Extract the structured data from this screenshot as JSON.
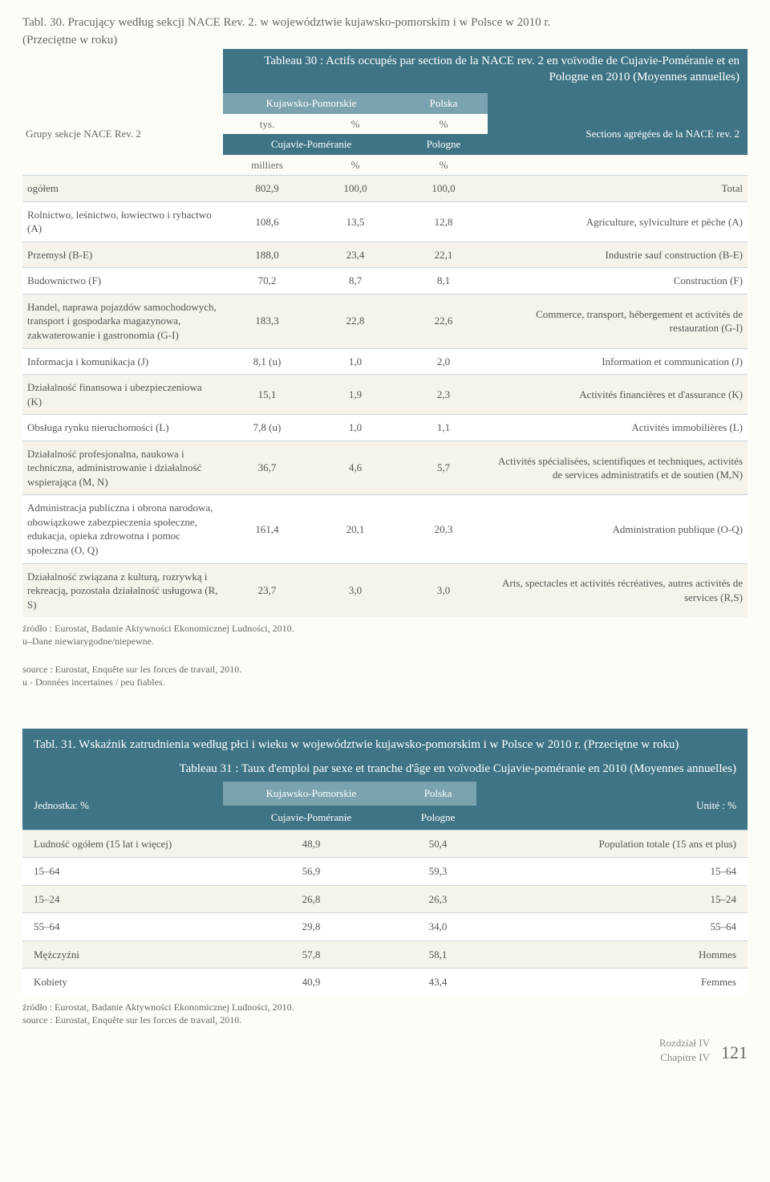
{
  "table30": {
    "title_pl_line1": "Tabl. 30. Pracujący według sekcji NACE Rev. 2. w województwie kujawsko-pomorskim i w Polsce w 2010 r.",
    "title_pl_line2": "(Przeciętne w roku)",
    "title_fr": "Tableau 30 : Actifs occupés par section de la NACE rev. 2 en voïvodie de Cujavie-Poméranie et en Pologne en 2010 (Moyennes annuelles)",
    "rowlabel_pl": "Grupy sekcje NACE Rev. 2",
    "rowlabel_fr": "Sections agrégées de la NACE rev. 2",
    "h_kp": "Kujawsko-Pomorskie",
    "h_pl": "Polska",
    "h_tys": "tys.",
    "h_pct": "%",
    "h_cp": "Cujavie-Poméranie",
    "h_pologne": "Pologne",
    "h_milliers": "milliers",
    "rows": [
      {
        "pl": "ogółem",
        "v1": "802,9",
        "v2": "100,0",
        "v3": "100,0",
        "fr": "Total"
      },
      {
        "pl": "Rolnictwo, leśnictwo, łowiectwo i rybactwo (A)",
        "v1": "108,6",
        "v2": "13,5",
        "v3": "12,8",
        "fr": "Agriculture, sylviculture et pêche (A)"
      },
      {
        "pl": "Przemysł (B-E)",
        "v1": "188,0",
        "v2": "23,4",
        "v3": "22,1",
        "fr": "Industrie sauf construction (B-E)"
      },
      {
        "pl": "Budownictwo (F)",
        "v1": "70,2",
        "v2": "8,7",
        "v3": "8,1",
        "fr": "Construction (F)"
      },
      {
        "pl": "Handel, naprawa pojazdów samochodowych, transport i gospodarka magazynowa, zakwaterowanie i gastronomia (G-I)",
        "v1": "183,3",
        "v2": "22,8",
        "v3": "22,6",
        "fr": "Commerce, transport, hébergement et activités de restauration (G-I)"
      },
      {
        "pl": "Informacja i komunikacja (J)",
        "v1": "8,1 (u)",
        "v2": "1,0",
        "v3": "2,0",
        "fr": "Information et communication (J)"
      },
      {
        "pl": "Działalność finansowa i ubezpieczeniowa (K)",
        "v1": "15,1",
        "v2": "1,9",
        "v3": "2,3",
        "fr": "Activités financières et d'assurance (K)"
      },
      {
        "pl": "Obsługa rynku nieruchomości (L)",
        "v1": "7,8 (u)",
        "v2": "1,0",
        "v3": "1,1",
        "fr": "Activités immobilières (L)"
      },
      {
        "pl": "Działalność profesjonalna, naukowa i techniczna, administrowanie i działalność wspierająca (M, N)",
        "v1": "36,7",
        "v2": "4,6",
        "v3": "5,7",
        "fr": "Activités spécialisées, scientifiques et techniques, activités de services administratifs et de soutien (M,N)"
      },
      {
        "pl": "Administracja publiczna i obrona narodowa, obowiązkowe zabezpieczenia społeczne, edukacja, opieka zdrowotna i pomoc społeczna (O, Q)",
        "v1": "161,4",
        "v2": "20,1",
        "v3": "20,3",
        "fr": "Administration publique (O-Q)"
      },
      {
        "pl": "Działalność związana z kulturą, rozrywką i rekreacją, pozostała działalność usługowa (R, S)",
        "v1": "23,7",
        "v2": "3,0",
        "v3": "3,0",
        "fr": "Arts, spectacles et activités récréatives, autres activités de services (R,S)"
      }
    ],
    "footnote_pl1": "źródło : Eurostat, Badanie Aktywności Ekonomicznej Ludności, 2010.",
    "footnote_pl2": "u–Dane niewiarygodne/niepewne.",
    "footnote_fr1": "source : Eurostat, Enquête sur les forces de travail, 2010.",
    "footnote_fr2": "u - Données incertaines / peu fiables."
  },
  "table31": {
    "title_pl": "Tabl. 31. Wskaźnik zatrudnienia według płci i wieku w województwie kujawsko-pomorskim i w Polsce w 2010 r. (Przeciętne w roku)",
    "title_fr": "Tableau 31 : Taux d'emploi par sexe et tranche d'âge en voïvodie Cujavie-poméranie en 2010 (Moyennes annuelles)",
    "unit_pl": "Jednostka: %",
    "unit_fr": "Unité : %",
    "h_kp": "Kujawsko-Pomorskie",
    "h_pl": "Polska",
    "h_cp": "Cujavie-Poméranie",
    "h_pologne": "Pologne",
    "rows": [
      {
        "pl": "Ludność ogółem (15 lat i więcej)",
        "v1": "48,9",
        "v2": "50,4",
        "fr": "Population totale (15 ans et plus)"
      },
      {
        "pl": "15–64",
        "v1": "56,9",
        "v2": "59,3",
        "fr": "15–64"
      },
      {
        "pl": "15–24",
        "v1": "26,8",
        "v2": "26,3",
        "fr": "15–24"
      },
      {
        "pl": "55–64",
        "v1": "29,8",
        "v2": "34,0",
        "fr": "55–64"
      },
      {
        "pl": "Mężczyźni",
        "v1": "57,8",
        "v2": "58,1",
        "fr": "Hommes"
      },
      {
        "pl": "Kobiety",
        "v1": "40,9",
        "v2": "43,4",
        "fr": "Femmes"
      }
    ],
    "footnote_pl": "źródło : Eurostat, Badanie Aktywności Ekonomicznej Ludności, 2010.",
    "footnote_fr": "source : Eurostat, Enquête sur les forces de travail, 2010."
  },
  "footer": {
    "chapter_pl": "Rozdział IV",
    "chapter_fr": "Chapitre IV",
    "page": "121"
  }
}
